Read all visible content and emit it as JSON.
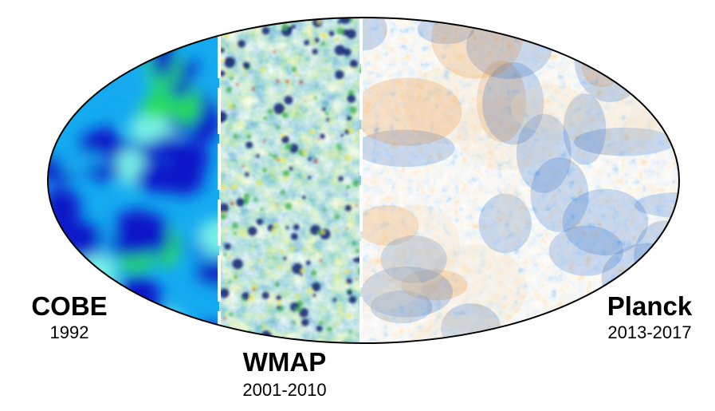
{
  "missions": [
    {
      "name": "COBE",
      "years": "1992"
    },
    {
      "name": "WMAP",
      "years": "2001-2010"
    },
    {
      "name": "Planck",
      "years": "2013-2017"
    }
  ],
  "colors": {
    "cobe_dark": "#0a14c8",
    "cobe_mid": "#14aaf0",
    "cobe_light": "#78f0e6",
    "cobe_green": "#28dc5a",
    "wmap_base": "#2a6fa0",
    "wmap_dark": "#0a1e6e",
    "wmap_green": "#46b45a",
    "wmap_yellow": "#f0e646",
    "wmap_red": "#dc2814",
    "planck_base": "#c8dcea",
    "planck_blue": "#1e64c8",
    "planck_light": "#f0dcb4",
    "planck_orange": "#e6821e",
    "planck_red": "#b42814",
    "divider": "#ffffff",
    "outline": "#000000"
  }
}
